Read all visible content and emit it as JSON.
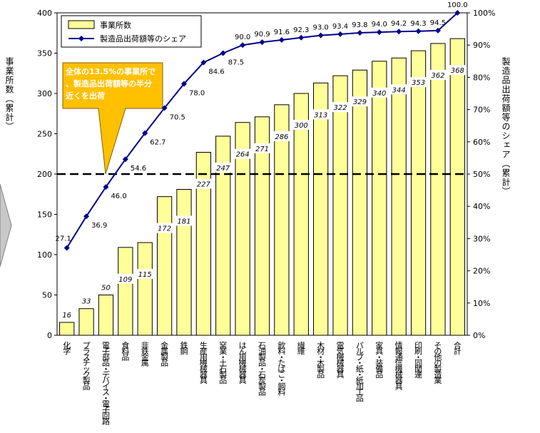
{
  "chart_data": {
    "type": "bar+line",
    "categories": [
      "化学",
      "プラスチック製品",
      "電子部品・デバイス・電子回路",
      "食料品",
      "非鉄金属",
      "金属製品",
      "鉄鋼",
      "生産用機械器具",
      "窯業・土石製品",
      "はん用機械器具",
      "石油製品・石炭製品",
      "飲料・たばこ・飼料",
      "繊維",
      "木材・木製品",
      "電気機械器具",
      "パルプ・紙・紙加工品",
      "家具・装備品",
      "情報通信機械器具",
      "印刷・同関連",
      "その他の製造業",
      "合計"
    ],
    "series": [
      {
        "name": "事業所数",
        "chart": "bar",
        "axis": "left",
        "values": [
          16,
          33,
          50,
          109,
          115,
          172,
          181,
          227,
          247,
          264,
          271,
          286,
          300,
          313,
          322,
          329,
          340,
          344,
          353,
          362,
          368
        ]
      },
      {
        "name": "製造品出荷額等のシェア",
        "chart": "line",
        "axis": "right",
        "values": [
          27.1,
          36.9,
          46.0,
          54.6,
          62.7,
          70.5,
          78.0,
          84.6,
          87.5,
          90.0,
          90.9,
          91.6,
          92.3,
          93.0,
          93.4,
          93.8,
          94.0,
          94.2,
          94.3,
          94.5,
          100.0
        ]
      }
    ],
    "ylabel_left": "事業所数（累計）",
    "ylabel_right": "製造品出荷額等のシェア（累計）",
    "ylim_left": [
      0,
      400
    ],
    "yticks_left": [
      "0",
      "50",
      "100",
      "150",
      "200",
      "250",
      "300",
      "350",
      "400"
    ],
    "ylim_right": [
      0,
      100
    ],
    "yticks_right": [
      "0%",
      "10%",
      "20%",
      "30%",
      "40%",
      "50%",
      "60%",
      "70%",
      "80%",
      "90%",
      "100%"
    ],
    "reference_line": 50,
    "callout": "全体の13.5%の事業所で、製造品出荷額等の半分近くを出荷",
    "legend_position": "top-left",
    "grid": false,
    "colors": {
      "bar_fill": "#ffff99",
      "bar_stroke": "#000000",
      "line": "#00008b",
      "callout_fill": "#ffc000",
      "callout_text": "#ffffff"
    }
  }
}
